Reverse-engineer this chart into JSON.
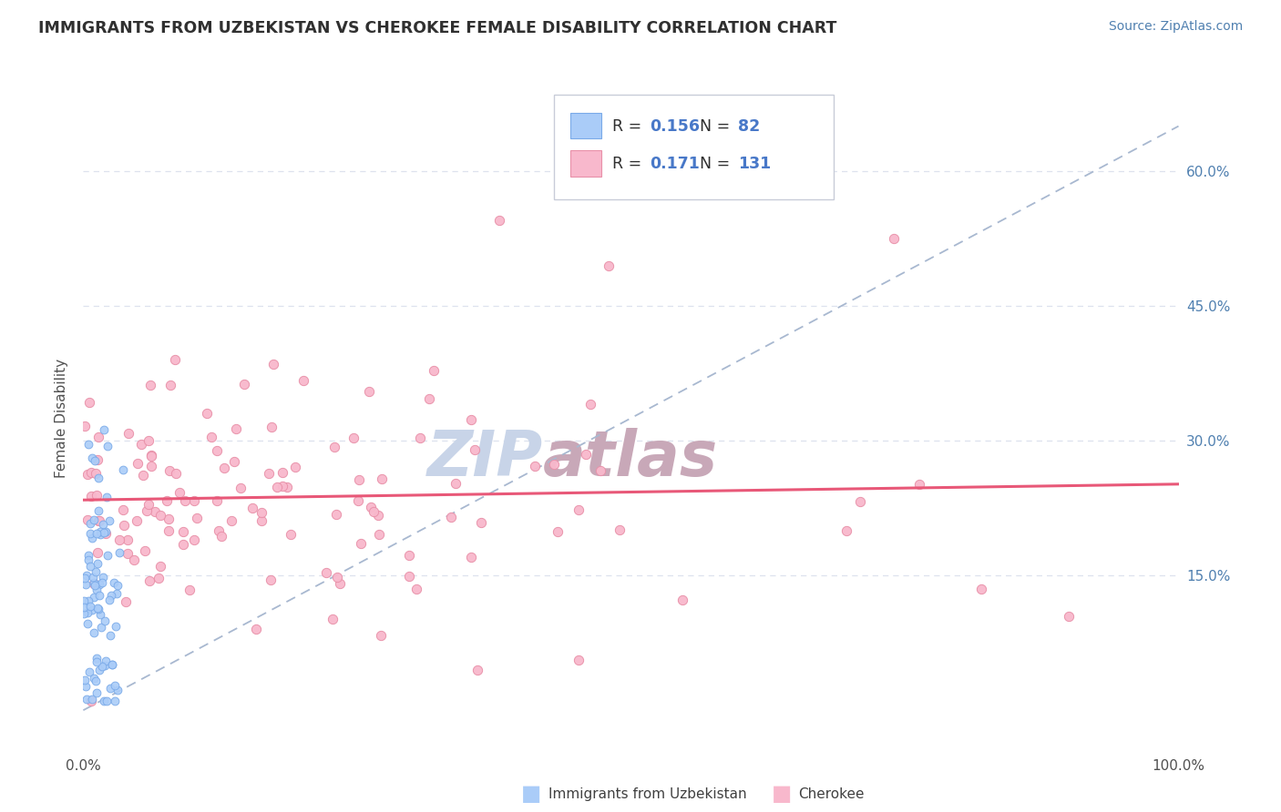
{
  "title": "IMMIGRANTS FROM UZBEKISTAN VS CHEROKEE FEMALE DISABILITY CORRELATION CHART",
  "source_text": "Source: ZipAtlas.com",
  "ylabel": "Female Disability",
  "legend_blue_label": "Immigrants from Uzbekistan",
  "legend_pink_label": "Cherokee",
  "legend_blue_R": "0.156",
  "legend_blue_N": "82",
  "legend_pink_R": "0.171",
  "legend_pink_N": "131",
  "blue_color": "#aaccf8",
  "blue_edge_color": "#7aaae8",
  "pink_color": "#f8b8cc",
  "pink_edge_color": "#e890a8",
  "pink_trend_color": "#e85878",
  "dashed_line_color": "#a8b8d0",
  "watermark_zip_color": "#c8d4e8",
  "watermark_atlas_color": "#c8a8b8",
  "title_color": "#303030",
  "source_color": "#5080b0",
  "background_color": "#ffffff",
  "grid_color": "#dde2ee",
  "right_tick_color": "#5080b0",
  "xlim": [
    0,
    1
  ],
  "ylim": [
    -0.05,
    0.7
  ],
  "y_ticks": [
    0.15,
    0.3,
    0.45,
    0.6
  ],
  "y_tick_labels": [
    "15.0%",
    "30.0%",
    "45.0%",
    "60.0%"
  ]
}
